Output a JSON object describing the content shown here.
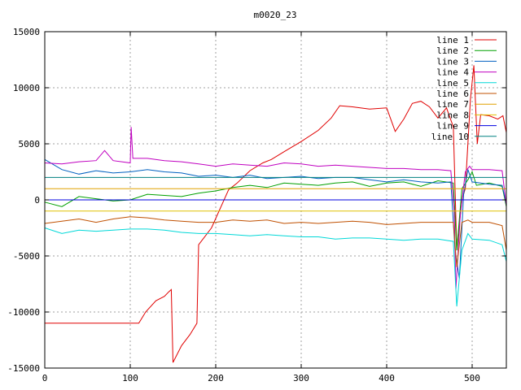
{
  "chart_data": {
    "type": "line",
    "title": "m0020_23",
    "xlabel": "",
    "ylabel": "",
    "xlim": [
      0,
      540
    ],
    "ylim": [
      -15000,
      15000
    ],
    "x_ticks": [
      0,
      100,
      200,
      300,
      400,
      500
    ],
    "y_ticks": [
      -15000,
      -10000,
      -5000,
      0,
      5000,
      10000,
      15000
    ],
    "grid": true,
    "legend_position": "top-right",
    "series": [
      {
        "name": "line 1",
        "color": "#e00000",
        "points": [
          [
            0,
            -11000
          ],
          [
            110,
            -11000
          ],
          [
            118,
            -10000
          ],
          [
            130,
            -9000
          ],
          [
            140,
            -8600
          ],
          [
            145,
            -8200
          ],
          [
            148,
            -8000
          ],
          [
            150,
            -14500
          ],
          [
            160,
            -13000
          ],
          [
            170,
            -12000
          ],
          [
            178,
            -11000
          ],
          [
            180,
            -4000
          ],
          [
            195,
            -2500
          ],
          [
            205,
            -800
          ],
          [
            215,
            900
          ],
          [
            225,
            1500
          ],
          [
            240,
            2600
          ],
          [
            255,
            3300
          ],
          [
            265,
            3600
          ],
          [
            280,
            4300
          ],
          [
            300,
            5200
          ],
          [
            320,
            6200
          ],
          [
            335,
            7300
          ],
          [
            345,
            8400
          ],
          [
            360,
            8300
          ],
          [
            380,
            8100
          ],
          [
            400,
            8200
          ],
          [
            410,
            6100
          ],
          [
            420,
            7200
          ],
          [
            430,
            8600
          ],
          [
            440,
            8800
          ],
          [
            450,
            8300
          ],
          [
            460,
            7300
          ],
          [
            470,
            8200
          ],
          [
            478,
            6500
          ],
          [
            482,
            -4500
          ],
          [
            488,
            0
          ],
          [
            492,
            1000
          ],
          [
            498,
            9000
          ],
          [
            502,
            12000
          ],
          [
            506,
            5000
          ],
          [
            510,
            7600
          ],
          [
            520,
            7500
          ],
          [
            530,
            7200
          ],
          [
            536,
            7500
          ],
          [
            540,
            6000
          ]
        ]
      },
      {
        "name": "line 2",
        "color": "#00a000",
        "points": [
          [
            0,
            -200
          ],
          [
            20,
            -600
          ],
          [
            40,
            300
          ],
          [
            60,
            100
          ],
          [
            80,
            -100
          ],
          [
            100,
            0
          ],
          [
            120,
            500
          ],
          [
            140,
            400
          ],
          [
            160,
            300
          ],
          [
            180,
            600
          ],
          [
            200,
            800
          ],
          [
            220,
            1100
          ],
          [
            240,
            1300
          ],
          [
            260,
            1100
          ],
          [
            280,
            1500
          ],
          [
            300,
            1400
          ],
          [
            320,
            1300
          ],
          [
            340,
            1500
          ],
          [
            360,
            1600
          ],
          [
            380,
            1200
          ],
          [
            400,
            1500
          ],
          [
            420,
            1600
          ],
          [
            440,
            1200
          ],
          [
            460,
            1700
          ],
          [
            478,
            1500
          ],
          [
            482,
            -4500
          ],
          [
            488,
            1000
          ],
          [
            495,
            1800
          ],
          [
            500,
            2500
          ],
          [
            505,
            1300
          ],
          [
            520,
            1500
          ],
          [
            535,
            1200
          ],
          [
            540,
            -600
          ]
        ]
      },
      {
        "name": "line 3",
        "color": "#0060c0",
        "points": [
          [
            0,
            3600
          ],
          [
            20,
            2700
          ],
          [
            40,
            2300
          ],
          [
            60,
            2600
          ],
          [
            80,
            2400
          ],
          [
            100,
            2500
          ],
          [
            120,
            2700
          ],
          [
            140,
            2500
          ],
          [
            160,
            2400
          ],
          [
            180,
            2100
          ],
          [
            200,
            2200
          ],
          [
            220,
            2000
          ],
          [
            240,
            2200
          ],
          [
            260,
            1900
          ],
          [
            280,
            2000
          ],
          [
            300,
            2100
          ],
          [
            320,
            1900
          ],
          [
            340,
            2000
          ],
          [
            360,
            2000
          ],
          [
            380,
            1800
          ],
          [
            400,
            1600
          ],
          [
            420,
            1800
          ],
          [
            440,
            1600
          ],
          [
            460,
            1500
          ],
          [
            475,
            1600
          ],
          [
            480,
            -4500
          ],
          [
            485,
            -7000
          ],
          [
            490,
            500
          ],
          [
            495,
            2700
          ],
          [
            500,
            1600
          ],
          [
            520,
            1400
          ],
          [
            535,
            1300
          ],
          [
            540,
            -400
          ]
        ]
      },
      {
        "name": "line 4",
        "color": "#c000c0",
        "points": [
          [
            0,
            3300
          ],
          [
            20,
            3200
          ],
          [
            40,
            3400
          ],
          [
            60,
            3500
          ],
          [
            70,
            4400
          ],
          [
            80,
            3500
          ],
          [
            100,
            3300
          ],
          [
            101,
            6500
          ],
          [
            103,
            3700
          ],
          [
            120,
            3700
          ],
          [
            140,
            3500
          ],
          [
            160,
            3400
          ],
          [
            180,
            3200
          ],
          [
            200,
            3000
          ],
          [
            220,
            3200
          ],
          [
            240,
            3100
          ],
          [
            260,
            3000
          ],
          [
            280,
            3300
          ],
          [
            300,
            3200
          ],
          [
            320,
            3000
          ],
          [
            340,
            3100
          ],
          [
            360,
            3000
          ],
          [
            380,
            2900
          ],
          [
            400,
            2800
          ],
          [
            420,
            2800
          ],
          [
            440,
            2700
          ],
          [
            460,
            2700
          ],
          [
            475,
            2600
          ],
          [
            479,
            -1000
          ],
          [
            481,
            -8000
          ],
          [
            486,
            -1500
          ],
          [
            492,
            2500
          ],
          [
            497,
            3000
          ],
          [
            500,
            2700
          ],
          [
            520,
            2700
          ],
          [
            535,
            2600
          ],
          [
            540,
            -500
          ]
        ]
      },
      {
        "name": "line 5",
        "color": "#00d8d8",
        "points": [
          [
            0,
            -2500
          ],
          [
            20,
            -3000
          ],
          [
            40,
            -2700
          ],
          [
            60,
            -2800
          ],
          [
            80,
            -2700
          ],
          [
            100,
            -2600
          ],
          [
            120,
            -2600
          ],
          [
            140,
            -2700
          ],
          [
            160,
            -2900
          ],
          [
            180,
            -3000
          ],
          [
            200,
            -3000
          ],
          [
            220,
            -3100
          ],
          [
            240,
            -3200
          ],
          [
            260,
            -3100
          ],
          [
            280,
            -3200
          ],
          [
            300,
            -3300
          ],
          [
            320,
            -3300
          ],
          [
            340,
            -3500
          ],
          [
            360,
            -3400
          ],
          [
            380,
            -3400
          ],
          [
            400,
            -3500
          ],
          [
            420,
            -3600
          ],
          [
            440,
            -3500
          ],
          [
            460,
            -3500
          ],
          [
            478,
            -3700
          ],
          [
            482,
            -9500
          ],
          [
            488,
            -4500
          ],
          [
            495,
            -3000
          ],
          [
            500,
            -3500
          ],
          [
            520,
            -3600
          ],
          [
            535,
            -4000
          ],
          [
            540,
            -5500
          ]
        ]
      },
      {
        "name": "line 6",
        "color": "#c05000",
        "points": [
          [
            0,
            -2100
          ],
          [
            20,
            -1900
          ],
          [
            40,
            -1700
          ],
          [
            60,
            -2000
          ],
          [
            80,
            -1700
          ],
          [
            100,
            -1500
          ],
          [
            120,
            -1600
          ],
          [
            140,
            -1800
          ],
          [
            160,
            -1900
          ],
          [
            180,
            -2000
          ],
          [
            200,
            -2000
          ],
          [
            220,
            -1800
          ],
          [
            240,
            -1900
          ],
          [
            260,
            -1800
          ],
          [
            280,
            -2100
          ],
          [
            300,
            -2000
          ],
          [
            320,
            -2100
          ],
          [
            340,
            -2000
          ],
          [
            360,
            -1900
          ],
          [
            380,
            -2000
          ],
          [
            400,
            -2200
          ],
          [
            420,
            -2100
          ],
          [
            440,
            -2000
          ],
          [
            460,
            -2000
          ],
          [
            478,
            -2000
          ],
          [
            482,
            -6000
          ],
          [
            488,
            -2000
          ],
          [
            495,
            -1800
          ],
          [
            500,
            -2000
          ],
          [
            520,
            -2000
          ],
          [
            535,
            -2300
          ],
          [
            540,
            -4500
          ]
        ]
      },
      {
        "name": "line 7",
        "color": "#e0a000",
        "points": [
          [
            0,
            1000
          ],
          [
            540,
            1000
          ]
        ]
      },
      {
        "name": "line 8",
        "color": "#e0c000",
        "points": [
          [
            0,
            -1000
          ],
          [
            540,
            -1000
          ]
        ]
      },
      {
        "name": "line 9",
        "color": "#0000e0",
        "points": [
          [
            0,
            0
          ],
          [
            540,
            0
          ]
        ]
      },
      {
        "name": "line 10",
        "color": "#008080",
        "points": [
          [
            0,
            2000
          ],
          [
            540,
            2000
          ]
        ]
      }
    ]
  }
}
